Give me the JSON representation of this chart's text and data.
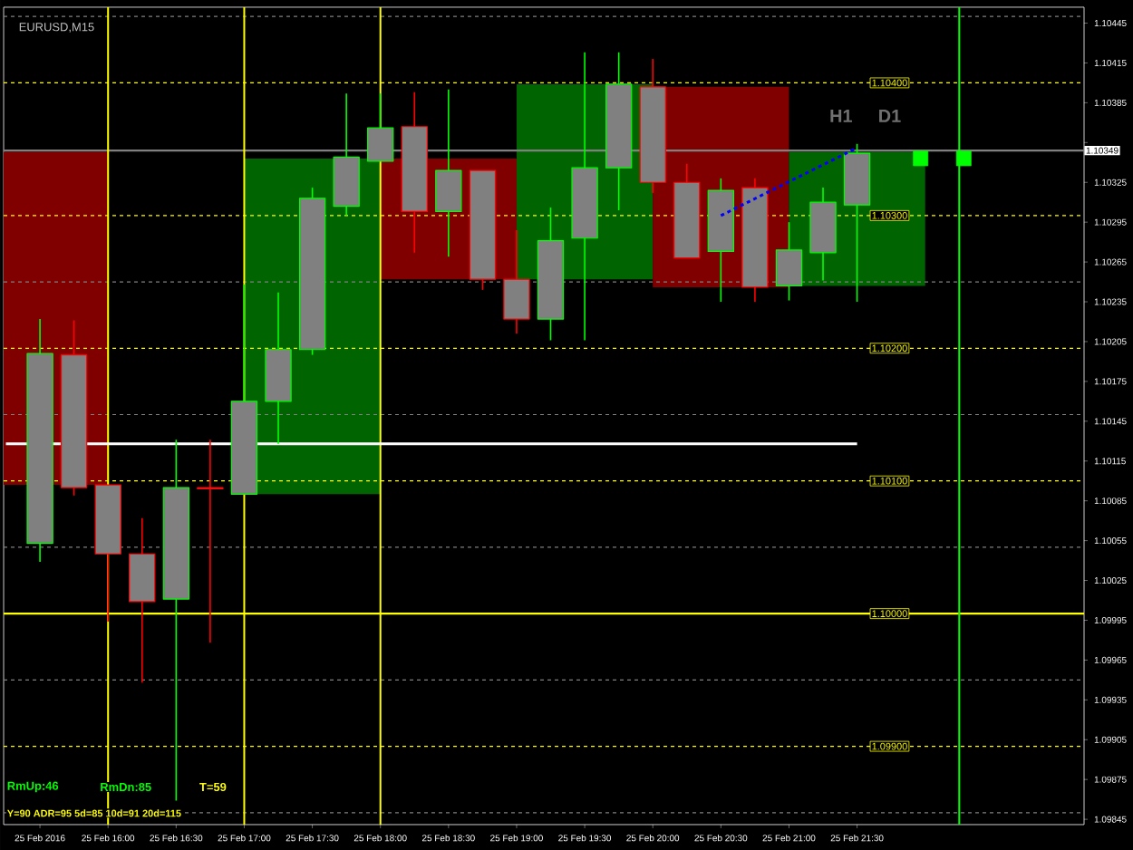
{
  "chart_data": {
    "type": "candlestick",
    "title": "EURUSD,M15",
    "x": [
      "2016-02-25T15:30",
      "2016-02-25T15:45",
      "2016-02-25T16:00",
      "2016-02-25T16:15",
      "2016-02-25T16:30",
      "2016-02-25T16:45",
      "2016-02-25T17:00",
      "2016-02-25T17:15",
      "2016-02-25T17:30",
      "2016-02-25T17:45",
      "2016-02-25T18:00",
      "2016-02-25T18:15",
      "2016-02-25T18:30",
      "2016-02-25T18:45",
      "2016-02-25T19:00",
      "2016-02-25T19:15",
      "2016-02-25T19:30",
      "2016-02-25T19:45",
      "2016-02-25T20:00",
      "2016-02-25T20:15",
      "2016-02-25T20:30",
      "2016-02-25T20:45",
      "2016-02-25T21:00",
      "2016-02-25T21:15",
      "2016-02-25T21:30"
    ],
    "ohlc": [
      [
        1.10053,
        1.10222,
        1.10039,
        1.10196
      ],
      [
        1.10195,
        1.10221,
        1.10089,
        1.10095
      ],
      [
        1.10097,
        1.10097,
        1.09994,
        1.10045
      ],
      [
        1.10045,
        1.10072,
        1.09948,
        1.10009
      ],
      [
        1.10011,
        1.10131,
        1.09859,
        1.10095
      ],
      [
        1.10095,
        1.10131,
        1.09978,
        1.10094
      ],
      [
        1.1009,
        1.10248,
        1.1009,
        1.1016
      ],
      [
        1.1016,
        1.10242,
        1.10128,
        1.10199
      ],
      [
        1.10199,
        1.10321,
        1.10195,
        1.10313
      ],
      [
        1.10307,
        1.10392,
        1.103,
        1.10344
      ],
      [
        1.10341,
        1.10392,
        1.10341,
        1.10366
      ],
      [
        1.10367,
        1.10393,
        1.10272,
        1.10303
      ],
      [
        1.10303,
        1.10395,
        1.10269,
        1.10334
      ],
      [
        1.10334,
        1.10334,
        1.10244,
        1.10252
      ],
      [
        1.10252,
        1.10289,
        1.10211,
        1.10222
      ],
      [
        1.10222,
        1.10306,
        1.10206,
        1.10281
      ],
      [
        1.10283,
        1.10423,
        1.10206,
        1.10336
      ],
      [
        1.10336,
        1.10423,
        1.10304,
        1.10399
      ],
      [
        1.10397,
        1.10418,
        1.10317,
        1.10325
      ],
      [
        1.10325,
        1.10339,
        1.10268,
        1.10268
      ],
      [
        1.10273,
        1.10328,
        1.10235,
        1.10319
      ],
      [
        1.10321,
        1.10328,
        1.10235,
        1.10246
      ],
      [
        1.10247,
        1.10295,
        1.10236,
        1.10274
      ],
      [
        1.10272,
        1.10321,
        1.10251,
        1.1031
      ],
      [
        1.10308,
        1.10354,
        1.10235,
        1.10347
      ]
    ],
    "colors": [
      "#00ff00",
      "#ff0000",
      "#ff0000",
      "#ff0000",
      "#00ff00",
      "#ff0000",
      "#00ff00",
      "#00ff00",
      "#00ff00",
      "#00ff00",
      "#00ff00",
      "#ff0000",
      "#00ff00",
      "#ff0000",
      "#ff0000",
      "#00ff00",
      "#00ff00",
      "#00ff00",
      "#ff0000",
      "#ff0000",
      "#00ff00",
      "#ff0000",
      "#00ff00",
      "#00ff00",
      "#00ff00"
    ],
    "series": [
      {
        "type": "bar",
        "x": [
          "2016-02-25T15:30",
          "2016-02-25T17:30",
          "2016-02-25T18:30",
          "2016-02-25T19:30",
          "2016-02-25T20:30",
          "2016-02-25T21:30"
        ],
        "base": [
          1.10097,
          1.1009,
          1.10252,
          1.10252,
          1.10246,
          1.10247
        ],
        "values": [
          0.00251,
          0.00253,
          0.00091,
          0.00147,
          0.00151,
          0.00101
        ],
        "colors": [
          "#800000",
          "#006400",
          "#800000",
          "#006400",
          "#800000",
          "#006400"
        ]
      },
      {
        "type": "line",
        "x": [
          "2016-02-25T15:15",
          "2016-02-25T21:30"
        ],
        "values": [
          1.10128,
          1.10128
        ],
        "color": "#ffffff"
      },
      {
        "type": "line",
        "x": [
          "2016-02-25T20:30",
          "2016-02-25T21:30"
        ],
        "values": [
          1.103,
          1.10351
        ],
        "color": "#0000ff",
        "line_style": "dashed"
      },
      {
        "type": "scatter",
        "x": [
          "2016-02-25T21:58",
          "2016-02-25T22:17"
        ],
        "values": [
          1.10343,
          1.10343
        ],
        "color": "#00ff00",
        "marker": "square"
      }
    ],
    "xlim": [
      "2016-02-25T15:14",
      "2016-02-25T23:10"
    ],
    "ylim": [
      1.09841,
      1.10457
    ],
    "xticks": [
      {
        "value": "2016-02-25T15:30",
        "label": "25 Feb 2016"
      },
      {
        "value": "2016-02-25T16:00",
        "label": "25 Feb 16:00"
      },
      {
        "value": "2016-02-25T16:30",
        "label": "25 Feb 16:30"
      },
      {
        "value": "2016-02-25T17:00",
        "label": "25 Feb 17:00"
      },
      {
        "value": "2016-02-25T17:30",
        "label": "25 Feb 17:30"
      },
      {
        "value": "2016-02-25T18:00",
        "label": "25 Feb 18:00"
      },
      {
        "value": "2016-02-25T18:30",
        "label": "25 Feb 18:30"
      },
      {
        "value": "2016-02-25T19:00",
        "label": "25 Feb 19:00"
      },
      {
        "value": "2016-02-25T19:30",
        "label": "25 Feb 19:30"
      },
      {
        "value": "2016-02-25T20:00",
        "label": "25 Feb 20:00"
      },
      {
        "value": "2016-02-25T20:30",
        "label": "25 Feb 20:30"
      },
      {
        "value": "2016-02-25T21:00",
        "label": "25 Feb 21:00"
      },
      {
        "value": "2016-02-25T21:30",
        "label": "25 Feb 21:30"
      }
    ],
    "yticks": [
      1.10445,
      1.10415,
      1.10385,
      {
        "value": 1.10355,
        "label": null
      },
      1.10325,
      1.10295,
      1.10265,
      1.10235,
      1.10205,
      1.10175,
      1.10145,
      1.10115,
      1.10085,
      1.10055,
      1.10025,
      1.09995,
      1.09965,
      1.09935,
      1.09905,
      1.09875,
      1.09845
    ],
    "ref_lines": [
      {
        "axis": "y",
        "value": 1.10349,
        "label": "1.10349",
        "color": "#808080",
        "line_style": "solid"
      },
      {
        "axis": "y",
        "value": 1.1045,
        "color": "#808080",
        "line_style": "dashed"
      },
      {
        "axis": "y",
        "value": 1.1025,
        "color": "#808080",
        "line_style": "dashed"
      },
      {
        "axis": "y",
        "value": 1.1015,
        "color": "#808080",
        "line_style": "dashed"
      },
      {
        "axis": "y",
        "value": 1.1005,
        "color": "#808080",
        "line_style": "dashed"
      },
      {
        "axis": "y",
        "value": 1.0995,
        "color": "#808080",
        "line_style": "dashed"
      },
      {
        "axis": "y",
        "value": 1.0985,
        "color": "#808080",
        "line_style": "dashed"
      },
      {
        "axis": "y",
        "value": 1.104,
        "label": "1.10400",
        "color": "#ffff00",
        "line_style": "dashed"
      },
      {
        "axis": "y",
        "value": 1.103,
        "label": "1.10300",
        "color": "#ffff00",
        "line_style": "dashed"
      },
      {
        "axis": "y",
        "value": 1.102,
        "label": "1.10200",
        "color": "#ffff00",
        "line_style": "dashed"
      },
      {
        "axis": "y",
        "value": 1.101,
        "label": "1.10100",
        "color": "#ffff00",
        "line_style": "dashed"
      },
      {
        "axis": "y",
        "value": 1.1,
        "label": "1.10000",
        "color": "#ffff00",
        "line_style": "solid"
      },
      {
        "axis": "y",
        "value": 1.099,
        "label": "1.09900",
        "color": "#ffff00",
        "line_style": "dashed"
      },
      {
        "axis": "x",
        "value": "2016-02-25T16:00",
        "color": "#ffff00",
        "line_style": "solid"
      },
      {
        "axis": "x",
        "value": "2016-02-25T17:00",
        "color": "#ffff00",
        "line_style": "solid"
      },
      {
        "axis": "x",
        "value": "2016-02-25T18:00",
        "color": "#ffff00",
        "line_style": "solid"
      },
      {
        "axis": "x",
        "value": "2016-02-25T22:15",
        "color": "#00ff00",
        "line_style": "solid"
      }
    ],
    "annotations": [
      "H1",
      "D1",
      "RmUp:46",
      "RmDn:85",
      "T=59",
      "Y=90  ADR=95  5d=85  10d=91  20d=115"
    ]
  }
}
